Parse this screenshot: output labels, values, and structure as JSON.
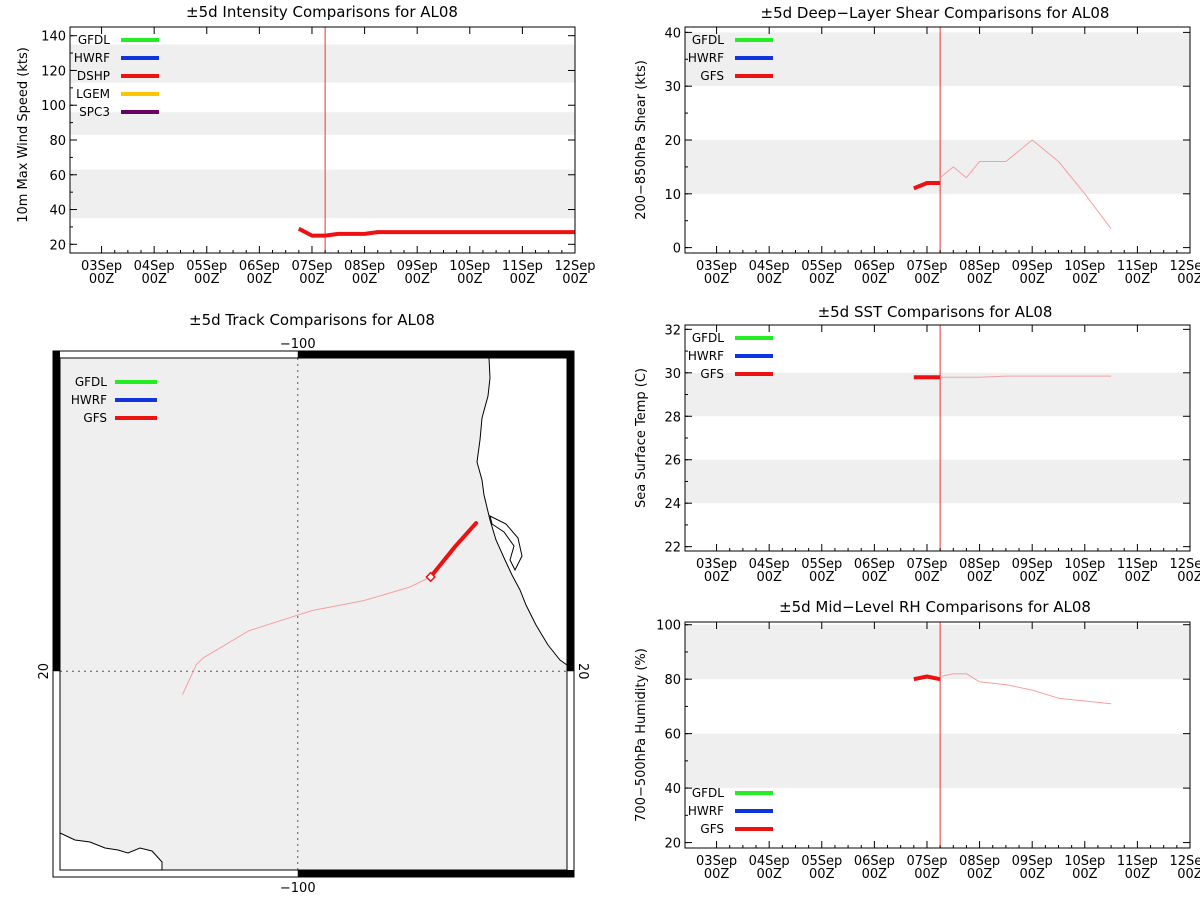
{
  "colors": {
    "GFDL": "#22ee22",
    "HWRF": "#1133dd",
    "DSHP": "#ee1111",
    "LGEM": "#ffc400",
    "SPC3": "#660066",
    "GFS": "#ee1111",
    "band": "#efefef",
    "vline": "#ee3333",
    "thin": "#f5a0a0"
  },
  "date_ticks": [
    "03Sep",
    "04Sep",
    "05Sep",
    "06Sep",
    "07Sep",
    "08Sep",
    "09Sep",
    "10Sep",
    "11Sep",
    "12Sep"
  ],
  "date_sub": "00Z",
  "chart_data": [
    {
      "id": "intensity",
      "type": "line",
      "title": "±5d Intensity Comparisons for AL08",
      "ylabel": "10m Max Wind Speed (kts)",
      "xlim": [
        2.4,
        12.0
      ],
      "ylim": [
        15,
        145
      ],
      "yticks": [
        20,
        40,
        60,
        80,
        100,
        120,
        140
      ],
      "bands": [
        [
          35,
          63
        ],
        [
          83,
          96
        ],
        [
          113,
          135
        ]
      ],
      "vline": 7.25,
      "legend": [
        "GFDL",
        "HWRF",
        "DSHP",
        "LGEM",
        "SPC3"
      ],
      "series": [
        {
          "name": "DSHP",
          "weight": "thick",
          "x": [
            6.75,
            7.0,
            7.25,
            7.5,
            7.75,
            8.0,
            8.25,
            12.0
          ],
          "y": [
            29,
            25,
            25,
            26,
            26,
            26,
            27,
            27
          ]
        }
      ]
    },
    {
      "id": "shear",
      "type": "line",
      "title": "±5d Deep−Layer Shear Comparisons for AL08",
      "ylabel": "200−850hPa Shear (kts)",
      "xlim": [
        2.4,
        12.0
      ],
      "ylim": [
        -1,
        41
      ],
      "yticks": [
        0,
        10,
        20,
        30,
        40
      ],
      "bands": [
        [
          10,
          20
        ],
        [
          30,
          40
        ]
      ],
      "vline": 7.25,
      "legend": [
        "GFDL",
        "HWRF",
        "GFS"
      ],
      "series": [
        {
          "name": "GFS",
          "weight": "thick",
          "x": [
            6.75,
            7.0,
            7.25
          ],
          "y": [
            11,
            12,
            12
          ]
        },
        {
          "name": "GFS",
          "weight": "thin",
          "x": [
            7.25,
            7.5,
            7.75,
            8.0,
            8.5,
            9.0,
            9.5,
            10.0,
            10.5
          ],
          "y": [
            13,
            15,
            13,
            16,
            16,
            20,
            16,
            10,
            3.5
          ]
        }
      ]
    },
    {
      "id": "sst",
      "type": "line",
      "title": "±5d SST Comparisons for AL08",
      "ylabel": "Sea Surface Temp (C)",
      "xlim": [
        2.4,
        12.0
      ],
      "ylim": [
        21.8,
        32.2
      ],
      "yticks": [
        22,
        24,
        26,
        28,
        30,
        32
      ],
      "bands": [
        [
          24,
          26
        ],
        [
          28,
          30
        ]
      ],
      "vline": 7.25,
      "legend": [
        "GFDL",
        "HWRF",
        "GFS"
      ],
      "series": [
        {
          "name": "GFS",
          "weight": "thick",
          "x": [
            6.75,
            7.0,
            7.25
          ],
          "y": [
            29.8,
            29.8,
            29.8
          ]
        },
        {
          "name": "GFS",
          "weight": "thin",
          "x": [
            7.25,
            8.0,
            8.5,
            9.0,
            10.5
          ],
          "y": [
            29.8,
            29.8,
            29.85,
            29.85,
            29.85
          ]
        }
      ]
    },
    {
      "id": "rh",
      "type": "line",
      "title": "±5d Mid−Level RH Comparisons for AL08",
      "ylabel": "700−500hPa Humidity (%)",
      "xlim": [
        2.4,
        12.0
      ],
      "ylim": [
        18,
        101
      ],
      "yticks": [
        20,
        40,
        60,
        80,
        100
      ],
      "bands": [
        [
          40,
          60
        ],
        [
          80,
          100
        ]
      ],
      "vline": 7.25,
      "legend": [
        "GFDL",
        "HWRF",
        "GFS"
      ],
      "series": [
        {
          "name": "GFS",
          "weight": "thick",
          "x": [
            6.75,
            7.0,
            7.25
          ],
          "y": [
            80,
            81,
            80
          ]
        },
        {
          "name": "GFS",
          "weight": "thin",
          "x": [
            7.25,
            7.5,
            7.75,
            8.0,
            8.5,
            9.0,
            9.5,
            10.0,
            10.5
          ],
          "y": [
            81,
            82,
            82,
            79,
            78,
            76,
            73,
            72,
            71
          ]
        }
      ]
    }
  ],
  "track_map": {
    "title": "±5d Track Comparisons for AL08",
    "lon_label": "−100",
    "lat_label": "20",
    "lon_range": [
      -106.8,
      -92.3
    ],
    "lat_range": [
      14.1,
      29.3
    ],
    "lon_line": -100,
    "lat_line": 20,
    "legend": [
      "GFDL",
      "HWRF",
      "GFS"
    ],
    "gfs_thick": {
      "lon": [
        -94.9,
        -95.5,
        -96.2
      ],
      "lat": [
        24.4,
        23.7,
        22.8
      ]
    },
    "gfs_thin": {
      "lon": [
        -96.2,
        -96.8,
        -98.1,
        -99.6,
        -101.4,
        -102.7,
        -102.9,
        -103.3
      ],
      "lat": [
        22.8,
        22.5,
        22.1,
        21.8,
        21.2,
        20.4,
        20.2,
        19.3
      ]
    }
  }
}
